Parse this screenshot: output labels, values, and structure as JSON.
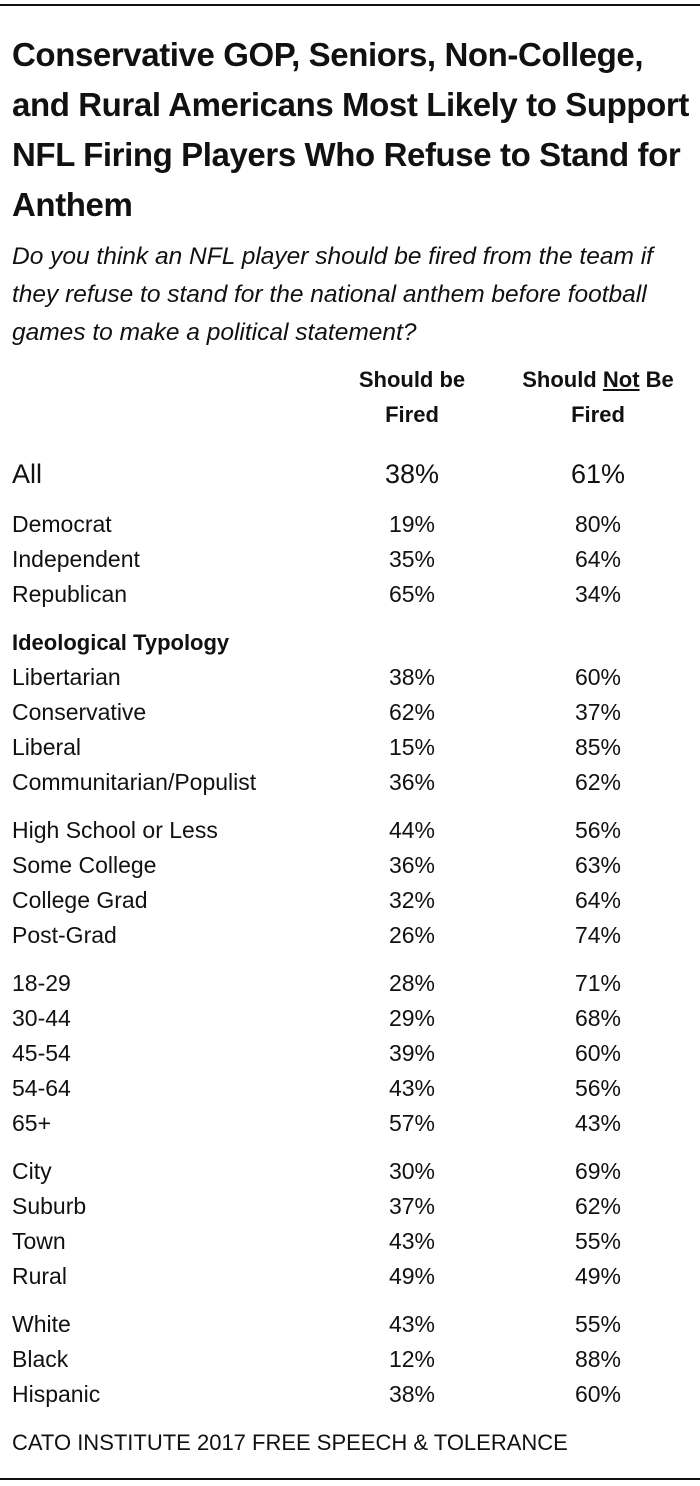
{
  "title": "Conservative GOP, Seniors, Non-College, and Rural Americans Most Likely to Support NFL Firing Players Who Refuse to Stand for Anthem",
  "question": "Do you think an NFL player should be fired from the team if they refuse to stand for the national anthem before football games to make a political statement?",
  "columns": [
    {
      "parts": [
        "Should be",
        "Fired"
      ]
    },
    {
      "parts": [
        "Should",
        "Not",
        "Be",
        "Fired"
      ]
    }
  ],
  "groups": [
    {
      "rows": [
        [
          "All",
          "38%",
          "61%"
        ]
      ]
    },
    {
      "rows": [
        [
          "Democrat",
          "19%",
          "80%"
        ],
        [
          "Independent",
          "35%",
          "64%"
        ],
        [
          "Republican",
          "65%",
          "34%"
        ]
      ]
    },
    {
      "heading": "Ideological Typology",
      "rows": [
        [
          "Libertarian",
          "38%",
          "60%"
        ],
        [
          "Conservative",
          "62%",
          "37%"
        ],
        [
          "Liberal",
          "15%",
          "85%"
        ],
        [
          "Communitarian/Populist",
          "36%",
          "62%"
        ]
      ]
    },
    {
      "rows": [
        [
          "High School or Less",
          "44%",
          "56%"
        ],
        [
          "Some College",
          "36%",
          "63%"
        ],
        [
          "College Grad",
          "32%",
          "64%"
        ],
        [
          "Post-Grad",
          "26%",
          "74%"
        ]
      ]
    },
    {
      "rows": [
        [
          "18-29",
          "28%",
          "71%"
        ],
        [
          "30-44",
          "29%",
          "68%"
        ],
        [
          "45-54",
          "39%",
          "60%"
        ],
        [
          "54-64",
          "43%",
          "56%"
        ],
        [
          "65+",
          "57%",
          "43%"
        ]
      ]
    },
    {
      "rows": [
        [
          "City",
          "30%",
          "69%"
        ],
        [
          "Suburb",
          "37%",
          "62%"
        ],
        [
          "Town",
          "43%",
          "55%"
        ],
        [
          "Rural",
          "49%",
          "49%"
        ]
      ]
    },
    {
      "rows": [
        [
          "White",
          "43%",
          "55%"
        ],
        [
          "Black",
          "12%",
          "88%"
        ],
        [
          "Hispanic",
          "38%",
          "60%"
        ]
      ]
    }
  ],
  "source": "CATO INSTITUTE 2017 FREE SPEECH & TOLERANCE"
}
